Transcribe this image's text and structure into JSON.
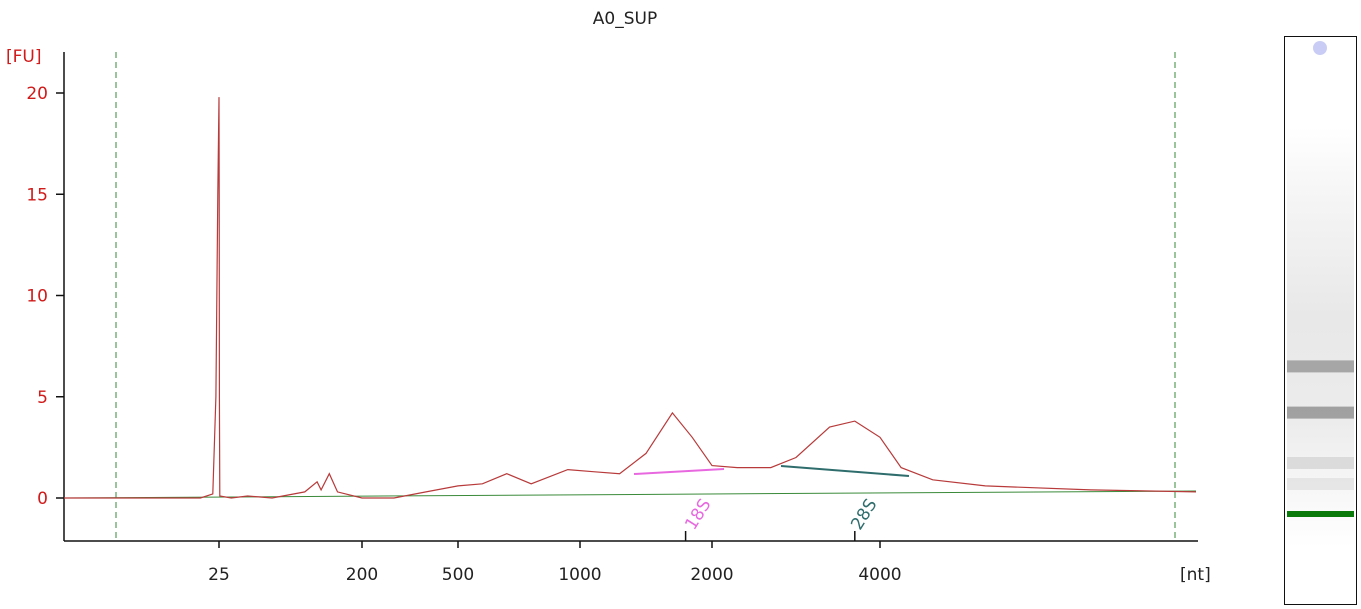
{
  "chart_data": {
    "type": "line",
    "title": "A0_SUP",
    "ylabel": "[FU]",
    "xlabel": "[nt]",
    "ylim": [
      -2,
      22
    ],
    "yticks": [
      0,
      5,
      10,
      15,
      20
    ],
    "xticks": [
      "25",
      "200",
      "500",
      "1000",
      "2000",
      "4000"
    ],
    "x_scale": "size ladder (nt)",
    "markers": [
      {
        "label": "18S",
        "position_nt": 1800
      },
      {
        "label": "28S",
        "position_nt": 3700
      }
    ],
    "series": [
      {
        "points": [
          [
            0,
            0.0
          ],
          [
            22,
            0.0
          ],
          [
            24,
            0.2
          ],
          [
            24.5,
            5
          ],
          [
            24.8,
            15
          ],
          [
            25,
            19.8
          ],
          [
            25.2,
            15
          ],
          [
            25.5,
            5
          ],
          [
            26,
            0.1
          ],
          [
            40,
            0.0
          ],
          [
            60,
            0.1
          ],
          [
            90,
            0.0
          ],
          [
            130,
            0.3
          ],
          [
            145,
            0.8
          ],
          [
            150,
            0.4
          ],
          [
            160,
            1.2
          ],
          [
            170,
            0.3
          ],
          [
            200,
            0.0
          ],
          [
            300,
            0.0
          ],
          [
            400,
            0.3
          ],
          [
            500,
            0.6
          ],
          [
            600,
            0.7
          ],
          [
            700,
            1.2
          ],
          [
            800,
            0.7
          ],
          [
            950,
            1.4
          ],
          [
            1100,
            1.3
          ],
          [
            1300,
            1.2
          ],
          [
            1500,
            2.2
          ],
          [
            1700,
            4.2
          ],
          [
            1850,
            3.0
          ],
          [
            2000,
            1.6
          ],
          [
            2300,
            1.5
          ],
          [
            2700,
            1.5
          ],
          [
            3000,
            2.0
          ],
          [
            3400,
            3.5
          ],
          [
            3700,
            3.8
          ],
          [
            4000,
            3.0
          ],
          [
            4400,
            1.5
          ],
          [
            5000,
            0.9
          ],
          [
            6000,
            0.6
          ],
          [
            8000,
            0.4
          ],
          [
            10000,
            0.3
          ]
        ]
      }
    ],
    "colors": {
      "trace": "#b83a3a",
      "baseline": "#3a8a3a",
      "axis": "#111111",
      "ytick": "#d11a1a",
      "marker_18S": "#e868e0",
      "marker_28S": "#2f6d6d",
      "bound_lines": "#3a8a3a"
    },
    "grid": false
  },
  "gel": {
    "bands": [
      {
        "position": 0.57,
        "intensity": 0.45
      },
      {
        "position": 0.68,
        "intensity": 0.5
      },
      {
        "position": 0.8,
        "intensity": 0.15
      },
      {
        "position": 0.85,
        "intensity": 0.1
      }
    ],
    "marker_color": "#0a7a0a",
    "dot_color": "#c9cdf5"
  }
}
